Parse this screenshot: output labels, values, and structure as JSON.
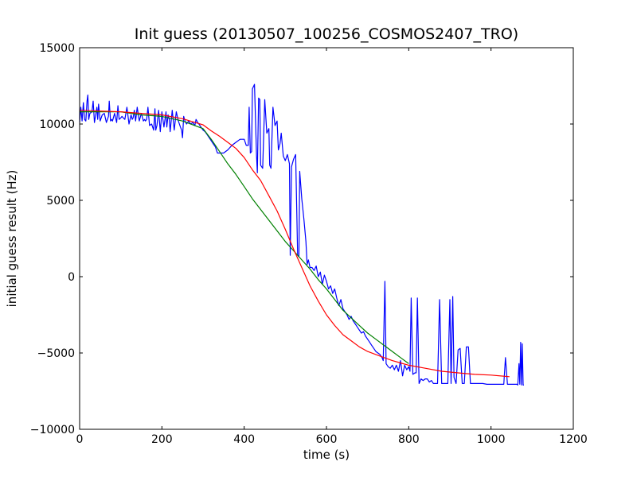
{
  "chart_data": {
    "type": "line",
    "title": "Init guess (20130507_100256_COSMOS2407_TRO)",
    "xlabel": "time (s)",
    "ylabel": "initial guess result (Hz)",
    "xlim": [
      0,
      1200
    ],
    "ylim": [
      -10000,
      15000
    ],
    "xticks": [
      0,
      200,
      400,
      600,
      800,
      1000,
      1200
    ],
    "yticks": [
      -10000,
      -5000,
      0,
      5000,
      10000,
      15000
    ],
    "grid": false,
    "legend": "none",
    "series": [
      {
        "color": "#0000ff",
        "x": [
          0,
          3,
          6,
          9,
          12,
          15,
          18,
          20,
          22,
          25,
          30,
          33,
          36,
          39,
          42,
          44,
          46,
          50,
          55,
          60,
          65,
          70,
          72,
          75,
          78,
          80,
          85,
          90,
          93,
          96,
          100,
          103,
          106,
          110,
          115,
          120,
          125,
          128,
          130,
          133,
          136,
          140,
          145,
          150,
          155,
          158,
          160,
          163,
          166,
          170,
          175,
          180,
          183,
          185,
          188,
          192,
          196,
          200,
          205,
          210,
          212,
          215,
          218,
          220,
          225,
          230,
          235,
          240,
          245,
          248,
          250,
          253,
          256,
          260,
          265,
          270,
          275,
          280,
          283,
          287,
          290,
          295,
          300,
          305,
          310,
          315,
          320,
          325,
          330,
          335,
          340,
          345,
          350,
          360,
          370,
          380,
          390,
          400,
          405,
          410,
          412,
          415,
          418,
          420,
          425,
          430,
          432,
          435,
          438,
          440,
          445,
          450,
          455,
          460,
          462,
          465,
          470,
          475,
          480,
          483,
          487,
          490,
          495,
          500,
          505,
          510,
          512,
          515,
          520,
          525,
          530,
          533,
          535,
          540,
          545,
          550,
          553,
          556,
          560,
          565,
          570,
          575,
          580,
          585,
          590,
          595,
          600,
          605,
          610,
          615,
          620,
          625,
          630,
          635,
          640,
          645,
          650,
          655,
          660,
          665,
          670,
          675,
          680,
          685,
          690,
          695,
          700,
          705,
          710,
          715,
          720,
          725,
          730,
          735,
          738,
          742,
          745,
          750,
          755,
          760,
          765,
          770,
          775,
          780,
          785,
          790,
          795,
          800,
          803,
          806,
          810,
          815,
          818,
          821,
          825,
          830,
          835,
          840,
          845,
          850,
          855,
          860,
          865,
          870,
          875,
          880,
          885,
          890,
          895,
          900,
          903,
          907,
          910,
          915,
          920,
          925,
          930,
          935,
          940,
          945,
          950,
          960,
          970,
          980,
          990,
          1000,
          1010,
          1020,
          1025,
          1028,
          1031,
          1035,
          1040,
          1050,
          1060,
          1063,
          1065,
          1068,
          1070,
          1072,
          1074,
          1076,
          1078,
          1080
        ],
        "y": [
          10100,
          11100,
          10200,
          11400,
          10300,
          10200,
          11500,
          11900,
          10300,
          10700,
          10800,
          11500,
          10100,
          10600,
          11100,
          10300,
          11300,
          10200,
          10600,
          10700,
          10100,
          10500,
          11500,
          10200,
          10300,
          10200,
          10700,
          10100,
          11200,
          10300,
          10400,
          10500,
          10400,
          10300,
          11100,
          10000,
          10600,
          10300,
          10400,
          10900,
          10200,
          11100,
          10200,
          10700,
          10200,
          10300,
          10200,
          10300,
          11100,
          9900,
          10000,
          9600,
          11000,
          9600,
          9900,
          10900,
          9500,
          10800,
          9800,
          10800,
          9800,
          10600,
          10300,
          9500,
          10900,
          9600,
          10800,
          10200,
          9800,
          9600,
          9100,
          10500,
          10200,
          10000,
          10200,
          10000,
          10100,
          9900,
          10300,
          10100,
          10000,
          9800,
          9600,
          9500,
          9300,
          9100,
          8900,
          8700,
          8500,
          8100,
          8100,
          8100,
          8100,
          8300,
          8600,
          8800,
          9000,
          9000,
          8600,
          8600,
          11100,
          8100,
          8200,
          12300,
          12600,
          7900,
          6800,
          11700,
          11600,
          7300,
          7100,
          11600,
          9400,
          9700,
          7300,
          7100,
          11100,
          9900,
          10200,
          8300,
          8700,
          9400,
          7900,
          7600,
          8000,
          7400,
          1400,
          7200,
          7700,
          8000,
          1400,
          1300,
          6900,
          5100,
          3800,
          2300,
          800,
          1100,
          600,
          600,
          400,
          700,
          0,
          300,
          -500,
          100,
          -300,
          -800,
          -600,
          -1100,
          -800,
          -1400,
          -1900,
          -1500,
          -2100,
          -2300,
          -2500,
          -2800,
          -2600,
          -2900,
          -3100,
          -3300,
          -3500,
          -3700,
          -3600,
          -3900,
          -4100,
          -4300,
          -4500,
          -4700,
          -4900,
          -5000,
          -5100,
          -5300,
          -5500,
          -300,
          -5700,
          -5900,
          -6000,
          -5800,
          -6100,
          -5800,
          -6200,
          -5500,
          -6500,
          -5800,
          -6100,
          -5900,
          -6200,
          -1400,
          -6400,
          -6300,
          -6300,
          -1400,
          -7000,
          -6700,
          -6800,
          -6700,
          -6700,
          -6900,
          -6800,
          -7000,
          -7000,
          -7000,
          -1500,
          -7000,
          -7000,
          -7000,
          -7000,
          -1500,
          -7000,
          -1300,
          -6600,
          -7000,
          -4800,
          -4700,
          -7000,
          -7000,
          -4600,
          -4600,
          -7000,
          -7000,
          -7000,
          -7000,
          -7050,
          -7050,
          -7050,
          -7050,
          -7050,
          -7050,
          -7050,
          -5300,
          -7050,
          -7050,
          -7050,
          -7050,
          -7100,
          -5700,
          -7050,
          -4300,
          -7100,
          -4400,
          -7100,
          -7100
        ]
      },
      {
        "color": "#008000",
        "x": [
          0,
          100,
          150,
          200,
          250,
          300,
          320,
          340,
          360,
          380,
          400,
          420,
          440,
          460,
          480,
          500,
          520,
          540,
          560,
          580,
          600,
          620,
          640,
          660,
          680,
          700,
          720,
          740,
          760,
          780,
          800
        ],
        "y": [
          10800,
          10800,
          10600,
          10500,
          10200,
          9700,
          9000,
          8200,
          7400,
          6700,
          5900,
          5100,
          4400,
          3700,
          3000,
          2300,
          1700,
          1100,
          500,
          -200,
          -800,
          -1500,
          -2200,
          -2700,
          -3200,
          -3700,
          -4100,
          -4500,
          -4900,
          -5300,
          -5700
        ]
      },
      {
        "color": "#ff0000",
        "x": [
          0,
          50,
          100,
          150,
          200,
          250,
          300,
          320,
          340,
          360,
          380,
          400,
          420,
          440,
          460,
          480,
          500,
          520,
          540,
          560,
          580,
          600,
          620,
          640,
          660,
          680,
          700,
          720,
          740,
          760,
          780,
          800,
          840,
          880,
          920,
          960,
          1000,
          1045
        ],
        "y": [
          10900,
          10850,
          10800,
          10700,
          10600,
          10350,
          9950,
          9550,
          9200,
          8800,
          8400,
          7800,
          7000,
          6300,
          5300,
          4300,
          3100,
          1800,
          600,
          -600,
          -1600,
          -2500,
          -3200,
          -3800,
          -4200,
          -4600,
          -4900,
          -5100,
          -5300,
          -5500,
          -5650,
          -5800,
          -6000,
          -6200,
          -6300,
          -6400,
          -6450,
          -6550
        ]
      }
    ]
  }
}
